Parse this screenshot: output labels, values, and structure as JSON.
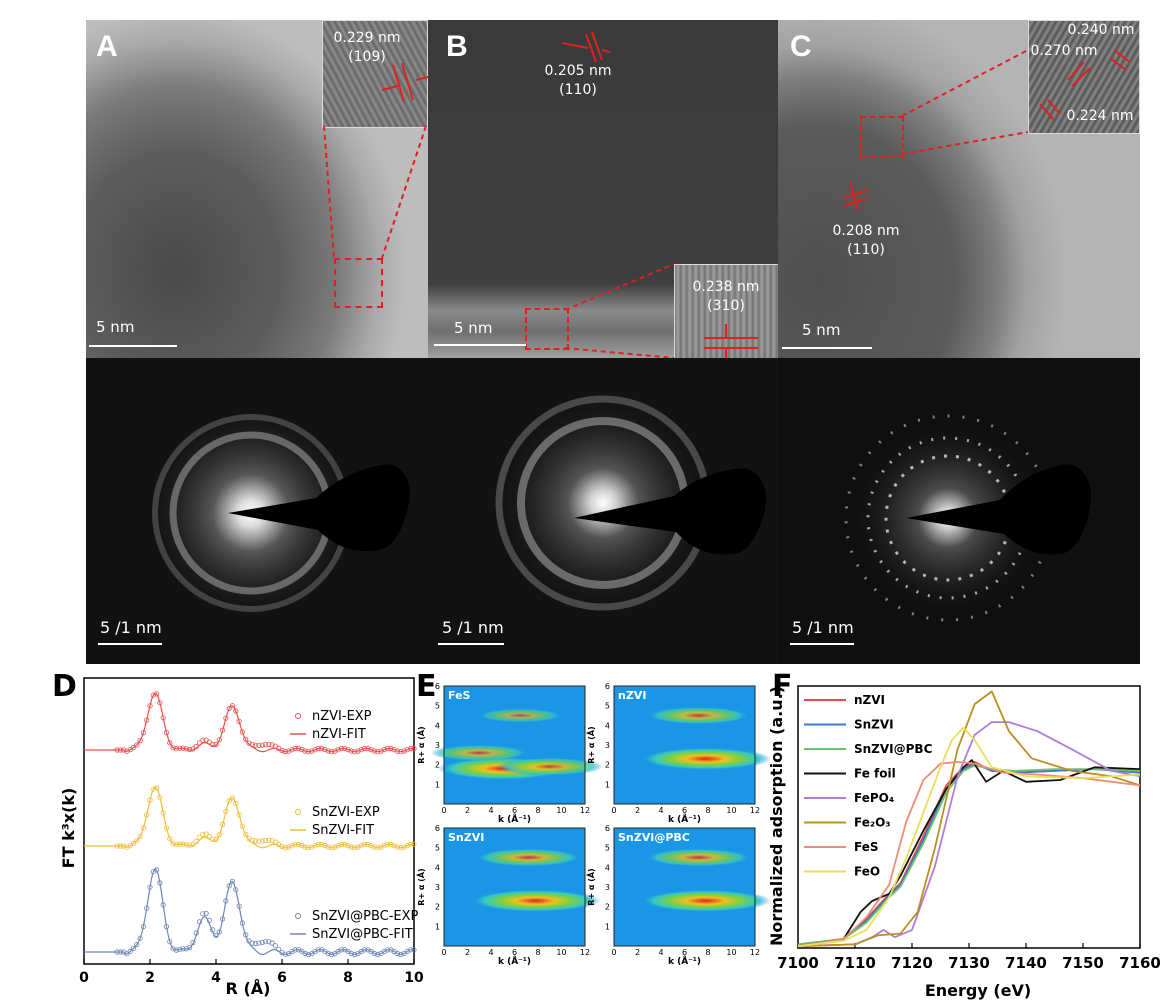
{
  "panels": {
    "A": {
      "letter": "A",
      "spacing": "0.229 nm",
      "plane": "(109)",
      "scale": "5 nm",
      "saed_scale": "5 /1 nm"
    },
    "B": {
      "letter": "B",
      "spacing1": "0.205 nm",
      "plane1": "(110)",
      "spacing2": "0.238 nm",
      "plane2": "(310)",
      "scale": "5 nm",
      "saed_scale": "5 /1 nm"
    },
    "C": {
      "letter": "C",
      "spacing_a": "0.240 nm",
      "spacing_b": "0.270 nm",
      "spacing_c": "0.224 nm",
      "spacing1": "0.208 nm",
      "plane1": "(110)",
      "scale": "5 nm",
      "saed_scale": "5 /1 nm"
    },
    "D": {
      "letter": "D",
      "ylabel": "FT k³x(k)",
      "xlabel": "R (Å)"
    },
    "E": {
      "letter": "E",
      "maps": [
        "FeS",
        "nZVI",
        "SnZVI",
        "SnZVI@PBC"
      ],
      "ylabel": "R+ α (Å)",
      "xlabel": "k (Å⁻¹)"
    },
    "F": {
      "letter": "F",
      "ylabel": "Normalized adsorption (a.u.)",
      "xlabel": "Energy (eV)"
    }
  },
  "chart_data": [
    {
      "type": "line",
      "panel": "D",
      "xlabel": "R (Å)",
      "ylabel": "FT k³x(k)",
      "xlim": [
        0,
        10
      ],
      "xticks": [
        0,
        2,
        4,
        6,
        8,
        10
      ],
      "series": [
        {
          "name": "nZVI-EXP",
          "marker": "circle",
          "color": "#e8514f",
          "peaks": [
            [
              2.15,
              1.0
            ],
            [
              3.65,
              0.15
            ],
            [
              4.5,
              0.78
            ],
            [
              5.45,
              0.12
            ]
          ]
        },
        {
          "name": "nZVI-FIT",
          "marker": "line",
          "color": "#e8514f",
          "peaks": [
            [
              2.15,
              1.0
            ],
            [
              3.65,
              0.1
            ],
            [
              4.5,
              0.78
            ]
          ]
        },
        {
          "name": "SnZVI-EXP",
          "marker": "circle",
          "color": "#f0be3c",
          "peaks": [
            [
              2.15,
              1.0
            ],
            [
              3.65,
              0.18
            ],
            [
              4.5,
              0.82
            ],
            [
              5.45,
              0.12
            ]
          ]
        },
        {
          "name": "SnZVI-FIT",
          "marker": "line",
          "color": "#f0be3c",
          "peaks": [
            [
              2.15,
              1.0
            ],
            [
              3.65,
              0.12
            ],
            [
              4.5,
              0.82
            ]
          ]
        },
        {
          "name": "SnZVI@PBC-EXP",
          "marker": "circle",
          "color": "#6f86b4",
          "peaks": [
            [
              2.15,
              1.0
            ],
            [
              3.65,
              0.45
            ],
            [
              4.5,
              0.85
            ],
            [
              5.45,
              0.15
            ]
          ]
        },
        {
          "name": "SnZVI@PBC-FIT",
          "marker": "line",
          "color": "#6f86b4",
          "peaks": [
            [
              2.15,
              1.0
            ],
            [
              3.65,
              0.4
            ],
            [
              4.5,
              0.85
            ]
          ]
        }
      ]
    },
    {
      "type": "heatmap",
      "panel": "E",
      "xlim": [
        0,
        12
      ],
      "ylim": [
        0,
        6
      ],
      "xticks": [
        0,
        2,
        4,
        6,
        8,
        10,
        12
      ],
      "yticks": [
        1,
        2,
        3,
        4,
        5,
        6
      ],
      "maps": [
        {
          "name": "FeS",
          "blobs": [
            [
              5,
              1.8,
              1.0
            ],
            [
              9,
              1.9,
              0.6
            ],
            [
              3,
              2.6,
              0.45
            ],
            [
              6.5,
              4.5,
              0.25
            ]
          ]
        },
        {
          "name": "nZVI",
          "blobs": [
            [
              7.8,
              2.3,
              1.0
            ],
            [
              7.2,
              4.5,
              0.55
            ]
          ]
        },
        {
          "name": "SnZVI",
          "blobs": [
            [
              7.8,
              2.3,
              1.0
            ],
            [
              7.2,
              4.5,
              0.6
            ]
          ]
        },
        {
          "name": "SnZVI@PBC",
          "blobs": [
            [
              7.8,
              2.3,
              1.0
            ],
            [
              7.2,
              4.5,
              0.6
            ]
          ]
        }
      ]
    },
    {
      "type": "line",
      "panel": "F",
      "xlabel": "Energy (eV)",
      "ylabel": "Normalized adsorption (a.u.)",
      "xlim": [
        7100,
        7160
      ],
      "ylim": [
        0,
        1.45
      ],
      "xticks": [
        7100,
        7110,
        7120,
        7130,
        7140,
        7150,
        7160
      ],
      "series": [
        {
          "name": "nZVI",
          "color": "#e8474a",
          "x": [
            7100,
            7108,
            7112,
            7116,
            7118,
            7122,
            7126,
            7129,
            7131,
            7134,
            7138,
            7145,
            7152,
            7160
          ],
          "y": [
            0.02,
            0.05,
            0.16,
            0.3,
            0.36,
            0.62,
            0.9,
            1.0,
            1.03,
            0.98,
            0.97,
            0.98,
            0.99,
            0.98
          ]
        },
        {
          "name": "SnZVI",
          "color": "#3a78c8",
          "x": [
            7100,
            7108,
            7112,
            7116,
            7118,
            7122,
            7126,
            7129,
            7131,
            7134,
            7138,
            7145,
            7152,
            7160
          ],
          "y": [
            0.02,
            0.05,
            0.15,
            0.29,
            0.35,
            0.6,
            0.88,
            0.99,
            1.02,
            0.98,
            0.97,
            0.98,
            0.99,
            0.97
          ]
        },
        {
          "name": "SnZVI@PBC",
          "color": "#6cc26e",
          "x": [
            7100,
            7108,
            7112,
            7116,
            7118,
            7122,
            7126,
            7129,
            7131,
            7134,
            7138,
            7145,
            7152,
            7160
          ],
          "y": [
            0.02,
            0.05,
            0.14,
            0.28,
            0.34,
            0.58,
            0.86,
            0.98,
            1.01,
            0.99,
            0.98,
            0.99,
            0.99,
            0.98
          ]
        },
        {
          "name": "Fe foil",
          "color": "#111111",
          "x": [
            7100,
            7108,
            7111,
            7113,
            7116,
            7118,
            7122,
            7126,
            7129,
            7130.5,
            7133,
            7136,
            7140,
            7146,
            7152,
            7160
          ],
          "y": [
            0.01,
            0.05,
            0.2,
            0.26,
            0.3,
            0.4,
            0.65,
            0.88,
            1.0,
            1.04,
            0.92,
            0.98,
            0.92,
            0.93,
            1.0,
            0.99
          ]
        },
        {
          "name": "FePO₄",
          "color": "#b07cdb",
          "x": [
            7100,
            7110,
            7113,
            7115,
            7117,
            7120,
            7124,
            7128,
            7131,
            7134,
            7137,
            7142,
            7148,
            7155,
            7160
          ],
          "y": [
            0.01,
            0.02,
            0.06,
            0.1,
            0.06,
            0.1,
            0.45,
            0.95,
            1.18,
            1.25,
            1.25,
            1.2,
            1.1,
            0.98,
            0.95
          ]
        },
        {
          "name": "Fe₂O₃",
          "color": "#b98f20",
          "x": [
            7100,
            7110,
            7114,
            7118,
            7121,
            7124,
            7128,
            7131,
            7134,
            7137,
            7141,
            7148,
            7155,
            7160
          ],
          "y": [
            0.01,
            0.02,
            0.07,
            0.08,
            0.2,
            0.55,
            1.1,
            1.35,
            1.42,
            1.2,
            1.05,
            0.98,
            0.95,
            0.9
          ]
        },
        {
          "name": "FeS",
          "color": "#ef8c78",
          "x": [
            7100,
            7108,
            7112,
            7116,
            7119,
            7122,
            7125,
            7128,
            7131,
            7136,
            7142,
            7150,
            7160
          ],
          "y": [
            0.01,
            0.05,
            0.17,
            0.35,
            0.7,
            0.93,
            1.02,
            1.03,
            1.02,
            0.97,
            0.96,
            0.94,
            0.9
          ]
        },
        {
          "name": "FeO",
          "color": "#e8e05a",
          "x": [
            7100,
            7108,
            7112,
            7116,
            7119,
            7122,
            7125,
            7127,
            7129,
            7131,
            7134,
            7140,
            7150,
            7160
          ],
          "y": [
            0.01,
            0.04,
            0.1,
            0.28,
            0.5,
            0.75,
            1.0,
            1.15,
            1.22,
            1.15,
            1.0,
            0.95,
            0.94,
            0.96
          ]
        }
      ]
    }
  ]
}
